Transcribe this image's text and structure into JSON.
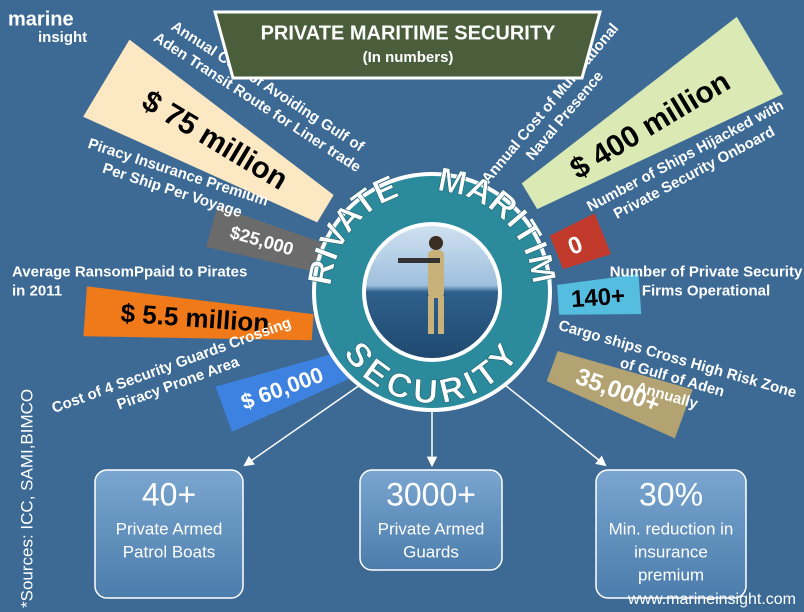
{
  "logo": {
    "top": "marine",
    "bottom": "insight"
  },
  "header": {
    "title": "PRIVATE MARITIME SECURITY",
    "subtitle": "(In numbers)"
  },
  "ring": {
    "words": [
      "PRIVATE",
      "MARITIME",
      "SECURITY"
    ]
  },
  "rays": [
    {
      "label": [
        "Annual Cost of Avoiding Gulf of",
        "Aden Transit Route for Liner trade"
      ],
      "value": "$ 75 million",
      "color": "#fde8c4"
    },
    {
      "label": [
        "Piracy Insurance Premium",
        "Per Ship Per Voyage"
      ],
      "value": "$25,000",
      "color": "#6b6b6b"
    },
    {
      "label": [
        "Average RansomPpaid to Pirates",
        "in 2011"
      ],
      "value": "$ 5.5 million",
      "color": "#f07a1a"
    },
    {
      "label": [
        "Cost of 4 Security Guards Crossing",
        "Piracy Prone Area"
      ],
      "value": "$ 60,000",
      "color": "#3d82e0"
    },
    {
      "label": [
        "Annual Cost of Multinational",
        "Naval Presence"
      ],
      "value": "$ 400 million",
      "color": "#dbe9b4"
    },
    {
      "label": [
        "Number of Ships Hijacked with",
        "Private Security Onboard"
      ],
      "value": "0",
      "color": "#c0392b"
    },
    {
      "label": [
        "Number of Private Security",
        "Firms Operational"
      ],
      "value": "140+",
      "color": "#55bde0"
    },
    {
      "label": [
        "Cargo ships Cross High Risk  Zone",
        "of Gulf of  Aden",
        "Annually"
      ],
      "value": "35,000+",
      "color": "#b3a272"
    }
  ],
  "boxes": [
    {
      "value": "40+",
      "label": [
        "Private Armed",
        "Patrol Boats"
      ]
    },
    {
      "value": "3000+",
      "label": [
        "Private Armed",
        "Guards"
      ]
    },
    {
      "value": "30%",
      "label": [
        "Min. reduction in",
        "insurance",
        "premium"
      ]
    }
  ],
  "sources": "*Sources: ICC, SAMI,BIMCO",
  "footer": "www.marineinsight.com"
}
